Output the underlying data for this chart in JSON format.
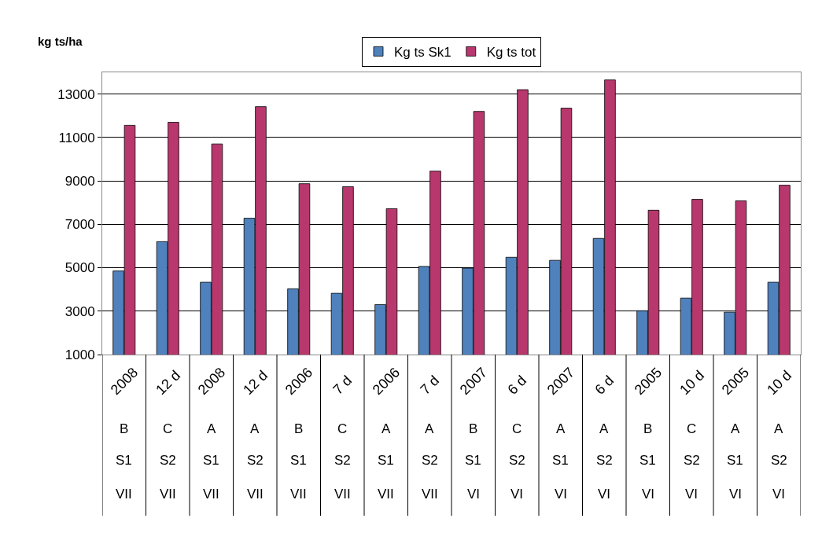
{
  "chart_data": {
    "type": "bar",
    "ylabel": "kg ts/ha",
    "categories": [
      "2008\nB\nS1\nVII",
      "12 d\nC\nS2\nVII",
      "2008\nA\nS1\nVII",
      "12 d\nA\nS2\nVII",
      "2006\nB\nS1\nVII",
      "7 d\nC\nS2\nVII",
      "2006\nA\nS1\nVII",
      "7 d\nA\nS2\nVII",
      "2007\nB\nS1\nVI",
      "6 d\nC\nS2\nVI",
      "2007\nA\nS1\nVI",
      "6 d\nA\nS2\nVI",
      "2005\nB\nS1\nVI",
      "10 d\nC\nS2\nVI",
      "2005\nA\nS1\nVI",
      "10 d\nA\nS2\nVI"
    ],
    "series": [
      {
        "name": "Kg ts Sk1",
        "color": "#4f81bd",
        "values": [
          4850,
          6200,
          4330,
          7280,
          4030,
          3820,
          3300,
          5060,
          4980,
          5480,
          5340,
          6350,
          3020,
          3600,
          2950,
          4330
        ]
      },
      {
        "name": "Kg ts tot",
        "color": "#b8386e",
        "values": [
          11560,
          11700,
          10700,
          12420,
          8870,
          8730,
          7720,
          9450,
          12200,
          13200,
          12350,
          13650,
          7650,
          8150,
          8080,
          8800
        ]
      }
    ],
    "ylim": [
      1000,
      14000
    ],
    "yticks": [
      1000,
      3000,
      5000,
      7000,
      9000,
      11000,
      13000
    ],
    "grid": "y",
    "legend": "top"
  }
}
